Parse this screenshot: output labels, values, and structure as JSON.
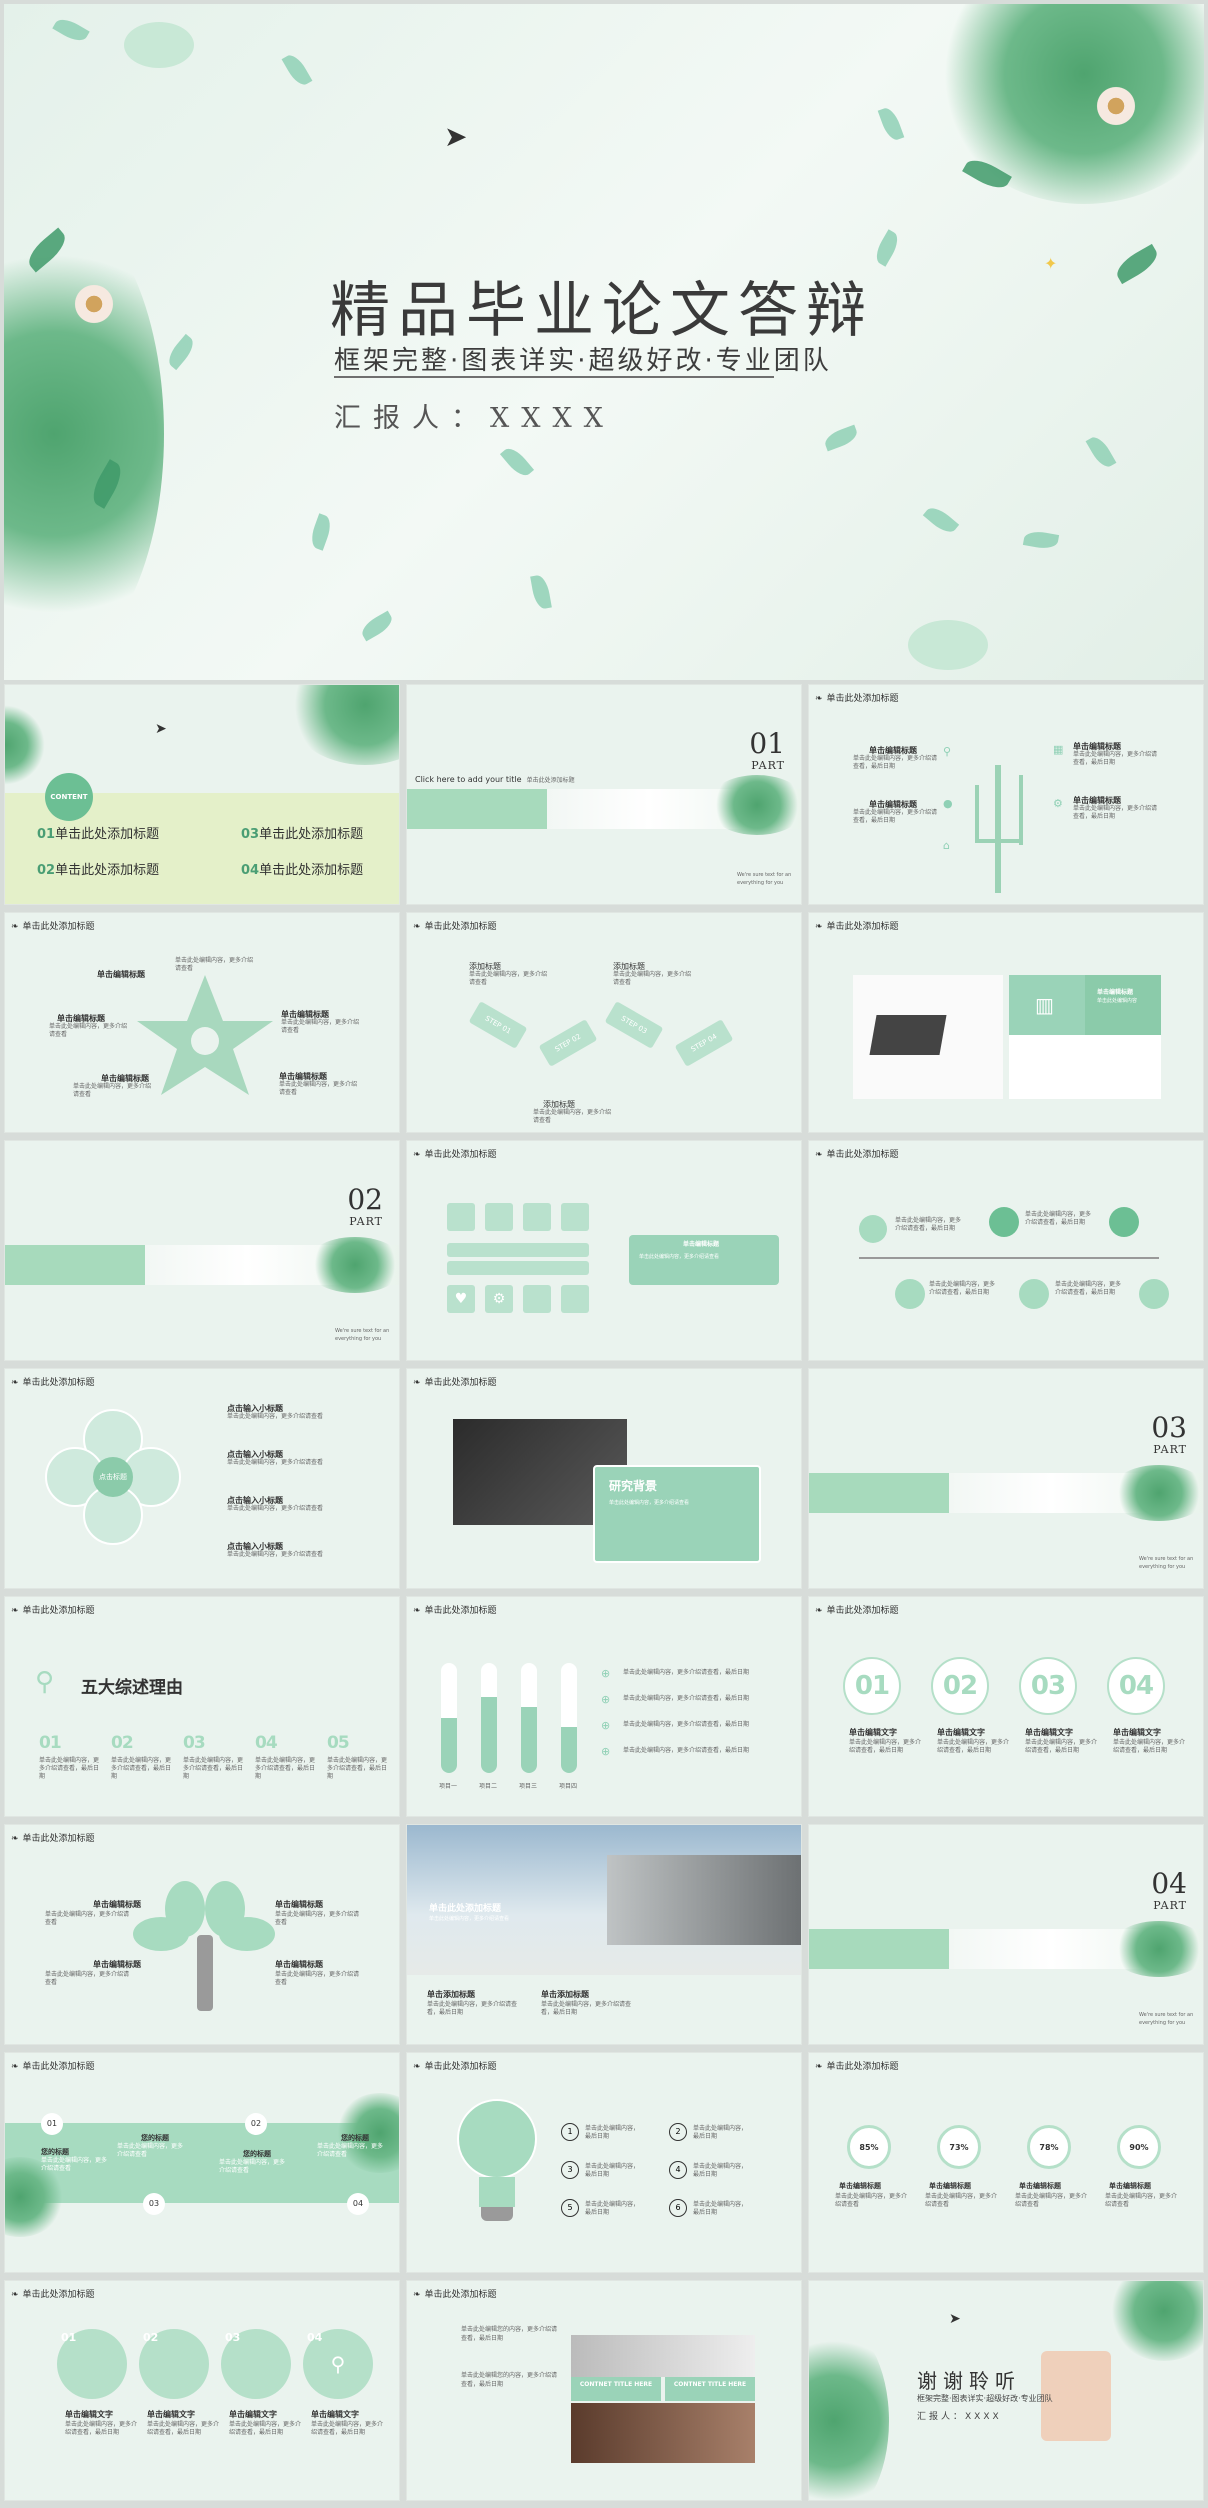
{
  "cover": {
    "title": "精品毕业论文答辩",
    "subtitle": "框架完整·图表详实·超级好改·专业团队",
    "reporter": "汇报人：XXXX"
  },
  "s2": {
    "badge": "CONTENT",
    "items": [
      {
        "num": "01",
        "label": "单击此处添加标题"
      },
      {
        "num": "03",
        "label": "单击此处添加标题"
      },
      {
        "num": "02",
        "label": "单击此处添加标题"
      },
      {
        "num": "04",
        "label": "单击此处添加标题"
      }
    ]
  },
  "s3": {
    "num": "01",
    "part": "PART",
    "click": "Click here to add your title",
    "sub": "单击此处添加标题",
    "corner": "We're sure text for an everything for you"
  },
  "header": "单击此处添加标题",
  "s4": {
    "labels": [
      "单击编辑标题",
      "单击编辑标题",
      "单击编辑标题",
      "单击编辑标题"
    ],
    "desc": "单击此处编辑内容，更多介绍请查看，最后日期"
  },
  "s5": {
    "labels": [
      "单击编辑标题",
      "单击编辑标题",
      "单击编辑标题",
      "单击编辑标题",
      "单击编辑标题"
    ],
    "desc": "单击此处编辑内容，更多介绍请查看"
  },
  "s6": {
    "labels": [
      "添加标题",
      "添加标题",
      "添加标题"
    ],
    "steps": [
      "STEP 01",
      "STEP 02",
      "STEP 03",
      "STEP 04"
    ],
    "desc": "单击此处编辑内容，更多介绍请查看"
  },
  "s7": {
    "title": "单击编辑标题",
    "desc": "单击此处编辑内容"
  },
  "s8": {
    "num": "02",
    "part": "PART",
    "corner": "We're sure text for an everything for you"
  },
  "s9": {
    "title": "单击编辑标题",
    "desc": "单击此处编辑内容，更多介绍请查看"
  },
  "s10": {
    "desc": "单击此处编辑内容，更多介绍请查看，最后日期"
  },
  "s11": {
    "center": "点击标题",
    "petal": "点击输入小标题",
    "items": [
      "点击输入小标题",
      "点击输入小标题",
      "点击输入小标题",
      "点击输入小标题"
    ],
    "desc": "单击此处编辑内容，更多介绍请查看"
  },
  "s12": {
    "title": "研究背景",
    "desc": "单击此处编辑内容，更多介绍请查看"
  },
  "s13": {
    "num": "03",
    "part": "PART",
    "corner": "We're sure text for an everything for you"
  },
  "s14": {
    "title": "五大综述理由",
    "nums": [
      "01",
      "02",
      "03",
      "04",
      "05"
    ],
    "desc": "单击此处编辑内容，更多介绍请查看，最后日期"
  },
  "s15": {
    "bar_labels": [
      "项目一",
      "项目二",
      "项目三",
      "项目四"
    ],
    "desc": "单击此处编辑内容，更多介绍请查看，最后日期"
  },
  "s16": {
    "nums": [
      "01",
      "02",
      "03",
      "04"
    ],
    "label": "单击编辑文字",
    "desc": "单击此处编辑内容，更多介绍请查看，最后日期"
  },
  "s17": {
    "label": "单击编辑标题",
    "desc": "单击此处编辑内容，更多介绍请查看"
  },
  "s18": {
    "title": "单击此处添加标题",
    "sub": "单击此处编辑内容，更多介绍请查看",
    "labels": [
      "单击添加标题",
      "单击添加标题"
    ],
    "desc": "单击此处编辑内容，更多介绍请查看，最后日期"
  },
  "s19": {
    "num": "04",
    "part": "PART",
    "corner": "We're sure text for an everything for you"
  },
  "s20": {
    "nums": [
      "01",
      "02",
      "03",
      "04"
    ],
    "label": "您的标题",
    "desc": "单击此处编辑内容，更多介绍请查看"
  },
  "s21": {
    "nums": [
      "1",
      "2",
      "3",
      "4",
      "5",
      "6"
    ],
    "desc": "单击此处编辑内容，最后日期"
  },
  "s22": {
    "pcts": [
      "85%",
      "73%",
      "78%",
      "90%"
    ],
    "label": "单击编辑标题",
    "desc": "单击此处编辑内容，更多介绍请查看"
  },
  "s23": {
    "nums": [
      "01",
      "02",
      "03",
      "04"
    ],
    "label": "单击编辑文字",
    "desc": "单击此处编辑内容，更多介绍请查看，最后日期"
  },
  "s24": {
    "desc": "单击此处编辑您的内容，更多介绍请查看，最后日期",
    "c1": "CONTNET TITLE HERE",
    "c2": "CONTNET TITLE HERE"
  },
  "s25": {
    "title": "谢谢聆听",
    "sub": "框架完整·图表详实·超级好改·专业团队",
    "reporter": "汇报人：XXXX"
  }
}
